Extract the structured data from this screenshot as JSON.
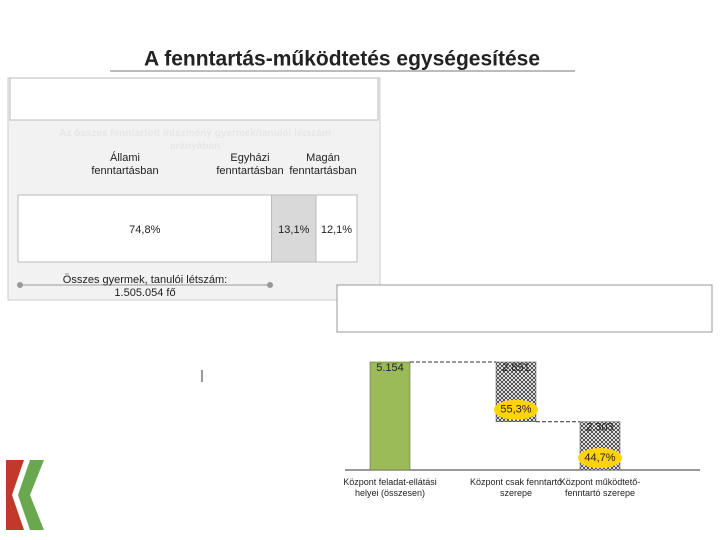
{
  "slide": {
    "title": "A fenntartás-működtetés egységesítése"
  },
  "chart_data": [
    {
      "type": "stacked-hbar",
      "subtitle": "Az összes fenntartott intézmény gyermek/tanulói létszám arányában",
      "series": [
        {
          "name": "Állami fenntartásban",
          "color": "#ffffff",
          "values": [
            74.8
          ],
          "value_labels": [
            "74,8%"
          ]
        },
        {
          "name": "Egyházi fenntartásban",
          "color": "#d9d9d9",
          "values": [
            13.1
          ],
          "value_labels": [
            "13,1%"
          ]
        },
        {
          "name": "Magán fenntartásban",
          "color": "#ffffff",
          "values": [
            12.1
          ],
          "value_labels": [
            "12,1%"
          ]
        }
      ],
      "annotation": "Összes gyermek, tanulói létszám:",
      "annotation_value": "1.505.054 fő"
    },
    {
      "type": "waterfall",
      "categories": [
        "Központ feladat-ellátási helyei (összesen)",
        "Központ csak fenntartó szerepe",
        "Központ működtető-fenntartó szerepe"
      ],
      "values": [
        5154,
        2851,
        2303
      ],
      "value_labels": [
        "5.154",
        "2.851",
        "2.303"
      ],
      "colors": [
        "#9bbb59",
        "hatch",
        "hatch"
      ],
      "share_values": [
        null,
        55.3,
        44.7
      ],
      "share_labels": [
        null,
        "55,3%",
        "44,7%"
      ]
    }
  ]
}
